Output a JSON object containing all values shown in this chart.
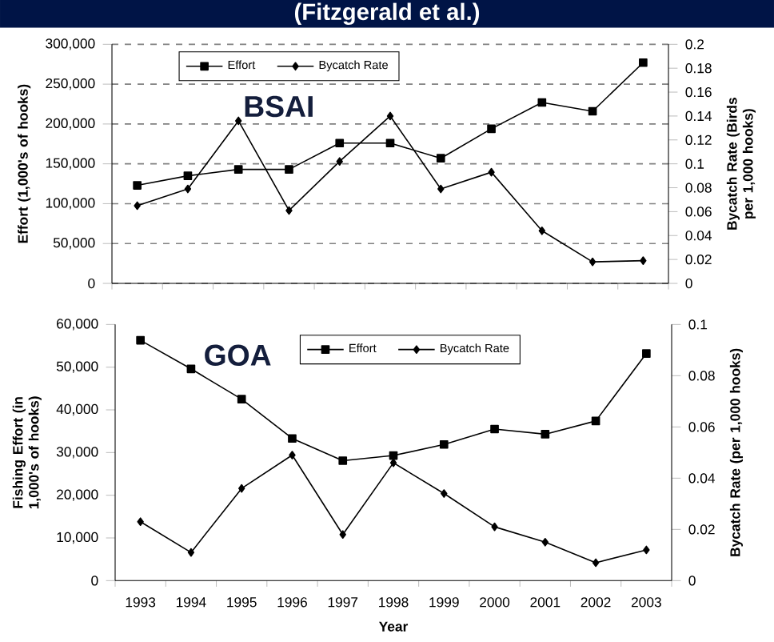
{
  "chart_data": [
    {
      "type": "line",
      "title": "(Fitzgerald et al.)",
      "ylabel": "Effort (1,000's of hooks)",
      "y2label": "Bycatch Rate (Birds per 1,000 hooks)",
      "annotations": [
        "BSAI"
      ],
      "categories": [
        "1993",
        "1994",
        "1995",
        "1996",
        "1997",
        "1998",
        "1999",
        "2000",
        "2001",
        "2002",
        "2003"
      ],
      "series": [
        {
          "name": "Effort",
          "color": "#000000",
          "marker": "square",
          "values": [
            123000,
            135000,
            143000,
            143000,
            176000,
            176000,
            157000,
            194000,
            227000,
            216000,
            277000
          ]
        },
        {
          "name": "Bycatch Rate",
          "color": "#000000",
          "marker": "diamond",
          "axis": "y2",
          "values": [
            0.065,
            0.079,
            0.136,
            0.061,
            0.102,
            0.14,
            0.079,
            0.093,
            0.044,
            0.018,
            0.019
          ]
        }
      ],
      "ylim": [
        0,
        300000
      ],
      "yticks": [
        0,
        {
          "value": 50000,
          "label": "50,000"
        },
        {
          "value": 100000,
          "label": "100,000"
        },
        {
          "value": 150000,
          "label": "150,000"
        },
        {
          "value": 200000,
          "label": "200,000"
        },
        {
          "value": 250000,
          "label": "250,000"
        },
        {
          "value": 300000,
          "label": "300,000"
        }
      ],
      "y2lim": [
        0,
        0.2
      ],
      "y2ticks": [
        0,
        0.02,
        0.04,
        0.06,
        0.08,
        0.1,
        0.12,
        0.14,
        0.16,
        0.18,
        0.2
      ],
      "grid": "y",
      "legend": "top left",
      "tick_labels": "y",
      "line_style": "solid"
    },
    {
      "type": "line",
      "xlabel": "Year",
      "ylabel": "Fishing Effort (in 1,000's of hooks)",
      "y2label": "Bycatch Rate (per 1,000 hooks)",
      "annotations": [
        "GOA"
      ],
      "categories": [
        "1993",
        "1994",
        "1995",
        "1996",
        "1997",
        "1998",
        "1999",
        "2000",
        "2001",
        "2002",
        "2003"
      ],
      "series": [
        {
          "name": "Effort",
          "color": "#000000",
          "marker": "square",
          "values": [
            56300,
            49600,
            42500,
            33300,
            28100,
            29300,
            31900,
            35500,
            34300,
            37400,
            53200
          ]
        },
        {
          "name": "Bycatch Rate",
          "color": "#000000",
          "marker": "diamond",
          "axis": "y2",
          "values": [
            0.023,
            0.011,
            0.036,
            0.049,
            0.018,
            0.046,
            0.034,
            0.021,
            0.015,
            0.007,
            0.012
          ]
        }
      ],
      "ylim": [
        0,
        60000
      ],
      "yticks": [
        0,
        {
          "value": 10000,
          "label": "10,000"
        },
        {
          "value": 20000,
          "label": "20,000"
        },
        {
          "value": 30000,
          "label": "30,000"
        },
        {
          "value": 40000,
          "label": "40,000"
        },
        {
          "value": 50000,
          "label": "50,000"
        },
        {
          "value": 60000,
          "label": "60,000"
        }
      ],
      "y2lim": [
        0,
        0.1
      ],
      "y2ticks": [
        0,
        0.02,
        0.04,
        0.06,
        0.08,
        0.1
      ],
      "grid": false,
      "legend": "top",
      "line_style": "solid"
    }
  ]
}
